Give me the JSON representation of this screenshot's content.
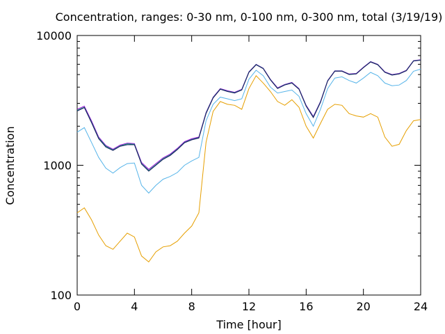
{
  "chart_data": {
    "type": "line",
    "title": "Concentration, ranges: 0-30 nm, 0-100 nm, 0-300 nm, total (3/19/19)",
    "xlabel": "Time [hour]",
    "ylabel": "Concentration",
    "xlim": [
      0,
      24
    ],
    "ylim": [
      100,
      10000
    ],
    "yscale": "log",
    "grid": false,
    "x_ticks": [
      0,
      4,
      8,
      12,
      16,
      20,
      24
    ],
    "x_tick_labels": [
      "0",
      "4",
      "8",
      "12",
      "16",
      "20",
      "24"
    ],
    "y_ticks": [
      100,
      1000,
      10000
    ],
    "y_tick_labels": [
      "100",
      "1000",
      "10000"
    ],
    "x": [
      0,
      0.5,
      1,
      1.5,
      2,
      2.5,
      3,
      3.5,
      4,
      4.5,
      5,
      5.5,
      6,
      6.5,
      7,
      7.5,
      8,
      8.5,
      9,
      9.5,
      10,
      10.5,
      11,
      11.5,
      12,
      12.5,
      13,
      13.5,
      14,
      14.5,
      15,
      15.5,
      16,
      16.5,
      17,
      17.5,
      18,
      18.5,
      19,
      19.5,
      20,
      20.5,
      21,
      21.5,
      22,
      22.5,
      23,
      23.5,
      24
    ],
    "series": [
      {
        "color": "#e69f00",
        "values": [
          430,
          470,
          380,
          290,
          240,
          225,
          260,
          300,
          280,
          200,
          180,
          215,
          235,
          240,
          260,
          300,
          340,
          430,
          1500,
          2600,
          3100,
          2950,
          2900,
          2700,
          3900,
          4900,
          4300,
          3700,
          3100,
          2900,
          3200,
          2800,
          2000,
          1620,
          2100,
          2700,
          2950,
          2900,
          2500,
          2400,
          2350,
          2500,
          2350,
          1650,
          1400,
          1450,
          1850,
          2200,
          2250
        ]
      },
      {
        "color": "#56b4e9",
        "values": [
          1800,
          1950,
          1500,
          1150,
          950,
          870,
          960,
          1030,
          1040,
          700,
          610,
          700,
          780,
          820,
          880,
          1000,
          1080,
          1150,
          2200,
          2950,
          3350,
          3250,
          3150,
          3250,
          4600,
          5400,
          4900,
          4000,
          3600,
          3700,
          3800,
          3400,
          2500,
          2000,
          2700,
          3900,
          4700,
          4800,
          4500,
          4300,
          4700,
          5200,
          4900,
          4300,
          4100,
          4150,
          4500,
          5300,
          5500
        ]
      },
      {
        "color": "#9400d3",
        "values": [
          2700,
          2850,
          2200,
          1650,
          1420,
          1330,
          1430,
          1480,
          1470,
          1050,
          930,
          1030,
          1140,
          1220,
          1350,
          1520,
          1600,
          1650,
          2550,
          3350,
          3900,
          3750,
          3650,
          3850,
          5250,
          6000,
          5600,
          4600,
          3950,
          4200,
          4350,
          3900,
          2900,
          2380,
          3100,
          4500,
          5350,
          5350,
          5050,
          5100,
          5700,
          6300,
          6000,
          5250,
          5000,
          5100,
          5400,
          6400,
          6500
        ]
      },
      {
        "color": "#009e73",
        "values": [
          2650,
          2800,
          2150,
          1620,
          1400,
          1310,
          1410,
          1460,
          1450,
          1030,
          910,
          1010,
          1120,
          1200,
          1330,
          1500,
          1580,
          1630,
          2520,
          3320,
          3870,
          3720,
          3620,
          3820,
          5220,
          5970,
          5570,
          4570,
          3920,
          4170,
          4320,
          3870,
          2870,
          2350,
          3070,
          4470,
          5320,
          5320,
          5020,
          5070,
          5670,
          6270,
          5970,
          5220,
          4970,
          5070,
          5370,
          6370,
          6470
        ]
      },
      {
        "color": "#1a1a60",
        "values": [
          2620,
          2780,
          2130,
          1600,
          1380,
          1300,
          1400,
          1440,
          1440,
          1020,
          900,
          1000,
          1110,
          1190,
          1320,
          1490,
          1570,
          1620,
          2500,
          3300,
          3850,
          3700,
          3600,
          3800,
          5200,
          5950,
          5550,
          4550,
          3900,
          4150,
          4300,
          3850,
          2850,
          2330,
          3050,
          4450,
          5300,
          5300,
          5000,
          5050,
          5650,
          6250,
          5950,
          5200,
          4950,
          5050,
          5350,
          6350,
          6450
        ]
      }
    ]
  }
}
